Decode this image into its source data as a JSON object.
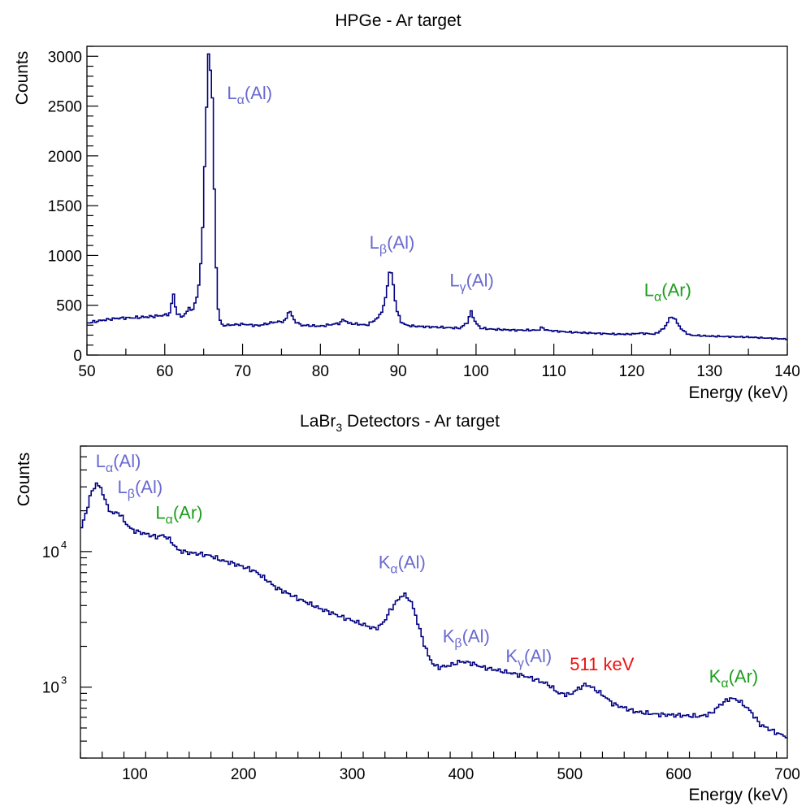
{
  "chart_data": [
    {
      "type": "line",
      "title": "HPGe - Ar target",
      "xlabel": "Energy (keV)",
      "ylabel": "Counts",
      "xlim": [
        50,
        140
      ],
      "ylim": [
        0,
        3100
      ],
      "log_y": false,
      "grid": false,
      "xticks": [
        50,
        60,
        70,
        80,
        90,
        100,
        110,
        120,
        130,
        140
      ],
      "yticks": [
        0,
        500,
        1000,
        1500,
        2000,
        2500,
        3000
      ],
      "colors": {
        "line": "#000080",
        "al_label": "#6a6ad0",
        "ar_label": "#1e9e1e"
      },
      "series": [
        {
          "x": [
            50,
            52,
            54,
            56,
            58,
            60,
            60.7,
            61.1,
            61.5,
            62,
            62.6,
            63.1,
            63.6,
            64,
            64.4,
            64.8,
            65.2,
            65.6,
            65.9,
            66.2,
            66.5,
            66.9,
            67.3,
            68,
            70,
            72,
            74,
            75.5,
            76,
            76.6,
            77.5,
            80,
            82.5,
            83,
            83.6,
            86,
            87.5,
            88.3,
            88.8,
            89.1,
            89.4,
            89.8,
            90.3,
            91,
            92,
            95,
            98,
            98.9,
            99.4,
            99.9,
            100.6,
            102,
            105,
            108,
            108.5,
            109,
            112,
            115,
            118,
            120,
            121,
            123,
            124.2,
            124.8,
            125.3,
            125.8,
            126.5,
            127.5,
            130,
            135,
            140
          ],
          "y": [
            320,
            350,
            370,
            375,
            385,
            400,
            420,
            630,
            420,
            390,
            400,
            480,
            440,
            560,
            690,
            1100,
            2100,
            2950,
            2980,
            2400,
            1100,
            420,
            300,
            300,
            310,
            295,
            330,
            340,
            460,
            350,
            300,
            290,
            320,
            360,
            320,
            300,
            380,
            520,
            820,
            840,
            680,
            460,
            340,
            300,
            290,
            280,
            270,
            330,
            440,
            330,
            270,
            260,
            250,
            250,
            280,
            250,
            230,
            220,
            210,
            210,
            220,
            210,
            270,
            360,
            390,
            330,
            250,
            200,
            190,
            180,
            160
          ]
        }
      ],
      "annotations": [
        {
          "text": "L",
          "sub": "α",
          "tail": "(Al)",
          "x": 68,
          "y": 2570,
          "color": "al"
        },
        {
          "text": "L",
          "sub": "β",
          "tail": "(Al)",
          "x": 86.3,
          "y": 1070,
          "color": "al"
        },
        {
          "text": "L",
          "sub": "γ",
          "tail": "(Al)",
          "x": 96.6,
          "y": 690,
          "color": "al"
        },
        {
          "text": "L",
          "sub": "α",
          "tail": "(Ar)",
          "x": 121.6,
          "y": 590,
          "color": "ar"
        }
      ]
    },
    {
      "type": "line",
      "title": "LaBr",
      "title_sub": "3",
      "title_tail": " Detectors - Ar target",
      "xlabel": "Energy (keV)",
      "ylabel": "Counts",
      "xlim": [
        50,
        700
      ],
      "ylim": [
        300,
        60000
      ],
      "log_y": true,
      "grid": false,
      "xticks": [
        100,
        200,
        300,
        400,
        500,
        600,
        700
      ],
      "yticks": [
        1000,
        10000
      ],
      "ytick_labels": [
        {
          "base": "10",
          "exp": "3"
        },
        {
          "base": "10",
          "exp": "4"
        }
      ],
      "colors": {
        "line": "#000080",
        "al_label": "#6a6ad0",
        "ar_label": "#1e9e1e",
        "annihilation_label": "#ee1111"
      },
      "series": [
        {
          "x": [
            50,
            55,
            60,
            65,
            70,
            75,
            80,
            85,
            90,
            95,
            100,
            110,
            120,
            125,
            130,
            135,
            140,
            150,
            160,
            170,
            180,
            190,
            200,
            210,
            220,
            230,
            250,
            270,
            290,
            310,
            320,
            325,
            330,
            335,
            340,
            345,
            348,
            352,
            356,
            360,
            365,
            370,
            375,
            380,
            390,
            400,
            410,
            420,
            440,
            460,
            480,
            490,
            500,
            510,
            515,
            520,
            530,
            540,
            560,
            580,
            600,
            620,
            630,
            640,
            648,
            655,
            665,
            675,
            690,
            700
          ],
          "y": [
            14000,
            19000,
            27000,
            32000,
            28000,
            21000,
            19000,
            19500,
            17000,
            15000,
            14200,
            13500,
            12800,
            13200,
            12700,
            11500,
            10200,
            9800,
            9600,
            9300,
            8600,
            8200,
            7700,
            7200,
            6300,
            5400,
            4500,
            3800,
            3300,
            2900,
            2700,
            2800,
            3100,
            3700,
            4200,
            4700,
            4800,
            4500,
            3900,
            3000,
            2200,
            1700,
            1450,
            1400,
            1450,
            1550,
            1500,
            1400,
            1300,
            1200,
            1050,
            900,
            880,
            1000,
            1050,
            1000,
            880,
            750,
            660,
            630,
            620,
            610,
            640,
            760,
            830,
            800,
            680,
            530,
            460,
            430
          ]
        }
      ],
      "annotations": [
        {
          "text": "L",
          "sub": "α",
          "tail": "(Al)",
          "x": 64,
          "y": 42000,
          "color": "al"
        },
        {
          "text": "L",
          "sub": "β",
          "tail": "(Al)",
          "x": 84,
          "y": 27000,
          "color": "al"
        },
        {
          "text": "L",
          "sub": "α",
          "tail": "(Ar)",
          "x": 119,
          "y": 17500,
          "color": "ar"
        },
        {
          "text": "K",
          "sub": "α",
          "tail": "(Al)",
          "x": 324,
          "y": 7500,
          "color": "al"
        },
        {
          "text": "K",
          "sub": "β",
          "tail": "(Al)",
          "x": 383,
          "y": 2150,
          "color": "al"
        },
        {
          "text": "K",
          "sub": "γ",
          "tail": "(Al)",
          "x": 441,
          "y": 1530,
          "color": "al"
        },
        {
          "text": "511 keV",
          "sub": "",
          "tail": "",
          "x": 500,
          "y": 1330,
          "color": "annihilation"
        },
        {
          "text": "K",
          "sub": "α",
          "tail": "(Ar)",
          "x": 628,
          "y": 1080,
          "color": "ar"
        }
      ]
    }
  ]
}
